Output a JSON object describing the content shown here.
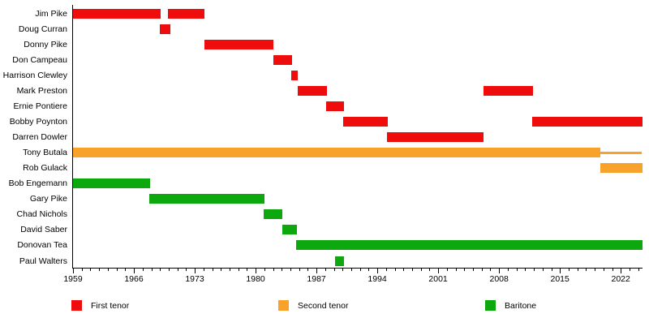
{
  "chart_data": {
    "type": "timeline",
    "description": "Band members timeline (Gantt-style) by voice part",
    "x_axis": {
      "start": 1959,
      "end": 2024.5,
      "tick_years": [
        1959,
        1966,
        1973,
        1980,
        1987,
        1994,
        2001,
        2008,
        2015,
        2022
      ],
      "minor_tick_interval": 1
    },
    "colors": {
      "first_tenor": "#ee0c0c",
      "second_tenor": "#f9a22b",
      "baritone": "#0da80d"
    },
    "legend": [
      {
        "label": "First tenor",
        "color": "#ee0c0c"
      },
      {
        "label": "Second tenor",
        "color": "#f9a22b"
      },
      {
        "label": "Baritone",
        "color": "#0da80d"
      }
    ],
    "members": [
      {
        "name": "Jim Pike",
        "part": "first_tenor",
        "bars": [
          {
            "start": 1959,
            "end": 1969.1
          },
          {
            "start": 1969.95,
            "end": 1974.1
          }
        ]
      },
      {
        "name": "Doug Curran",
        "part": "first_tenor",
        "bars": [
          {
            "start": 1969,
            "end": 1970.2
          }
        ]
      },
      {
        "name": "Donny Pike",
        "part": "first_tenor",
        "bars": [
          {
            "start": 1974.1,
            "end": 1982.1
          }
        ]
      },
      {
        "name": "Don Campeau",
        "part": "first_tenor",
        "bars": [
          {
            "start": 1982,
            "end": 1984.2
          }
        ]
      },
      {
        "name": "Harrison Clewley",
        "part": "first_tenor",
        "bars": [
          {
            "start": 1984.05,
            "end": 1984.85
          }
        ]
      },
      {
        "name": "Mark Preston",
        "part": "first_tenor",
        "bars": [
          {
            "start": 1984.8,
            "end": 1988.2
          },
          {
            "start": 2006.2,
            "end": 2011.9
          }
        ]
      },
      {
        "name": "Ernie Pontiere",
        "part": "first_tenor",
        "bars": [
          {
            "start": 1988.1,
            "end": 1990.2
          }
        ]
      },
      {
        "name": "Bobby Poynton",
        "part": "first_tenor",
        "bars": [
          {
            "start": 1990.05,
            "end": 1995.2
          },
          {
            "start": 2011.8,
            "end": 2024.5
          }
        ]
      },
      {
        "name": "Darren Dowler",
        "part": "first_tenor",
        "bars": [
          {
            "start": 1995.1,
            "end": 2006.25
          }
        ]
      },
      {
        "name": "Tony Butala",
        "part": "second_tenor",
        "bars": [
          {
            "start": 1959,
            "end": 2019.6
          },
          {
            "start": 2019.6,
            "end": 2024.4,
            "style": "thin"
          }
        ]
      },
      {
        "name": "Rob Gulack",
        "part": "second_tenor",
        "bars": [
          {
            "start": 2019.6,
            "end": 2024.5
          }
        ]
      },
      {
        "name": "Bob Engemann",
        "part": "baritone",
        "bars": [
          {
            "start": 1959,
            "end": 1967.85
          }
        ]
      },
      {
        "name": "Gary Pike",
        "part": "baritone",
        "bars": [
          {
            "start": 1967.8,
            "end": 1981.05
          }
        ]
      },
      {
        "name": "Chad Nichols",
        "part": "baritone",
        "bars": [
          {
            "start": 1980.9,
            "end": 1983.1
          }
        ]
      },
      {
        "name": "David Saber",
        "part": "baritone",
        "bars": [
          {
            "start": 1983.1,
            "end": 1984.8
          }
        ]
      },
      {
        "name": "Donovan Tea",
        "part": "baritone",
        "bars": [
          {
            "start": 1984.7,
            "end": 2024.5
          }
        ]
      },
      {
        "name": "Paul Walters",
        "part": "baritone",
        "bars": [
          {
            "start": 1989.1,
            "end": 1990.2
          }
        ]
      }
    ]
  }
}
